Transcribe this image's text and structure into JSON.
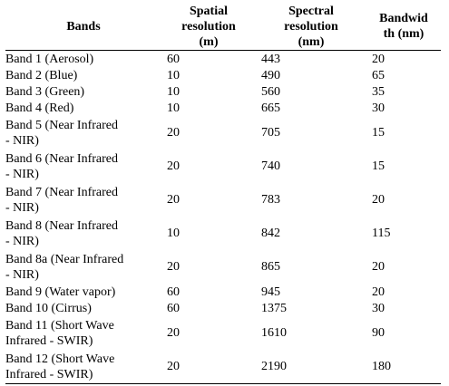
{
  "table": {
    "headers": {
      "bands": "Bands",
      "spatial": "Spatial resolution (m)",
      "spectral": "Spectral resolution (nm)",
      "bandwidth": "Bandwidth (nm)"
    },
    "header_lines": {
      "bands": [
        "Bands"
      ],
      "spatial": [
        "Spatial",
        "resolution",
        "(m)"
      ],
      "spectral": [
        "Spectral",
        "resolution",
        "(nm)"
      ],
      "bandwidth": [
        "Bandwid",
        "th (nm)"
      ]
    },
    "rows": [
      {
        "band": "Band 1 (Aerosol)",
        "spatial": "60",
        "spectral": "443",
        "bandwidth": "20"
      },
      {
        "band": "Band 2 (Blue)",
        "spatial": "10",
        "spectral": "490",
        "bandwidth": "65"
      },
      {
        "band": "Band 3 (Green)",
        "spatial": "10",
        "spectral": "560",
        "bandwidth": "35"
      },
      {
        "band": "Band 4 (Red)",
        "spatial": "10",
        "spectral": "665",
        "bandwidth": "30"
      },
      {
        "band": "Band 5 (Near Infrared - NIR)",
        "spatial": "20",
        "spectral": "705",
        "bandwidth": "15"
      },
      {
        "band": "Band 6 (Near Infrared - NIR)",
        "spatial": "20",
        "spectral": "740",
        "bandwidth": "15"
      },
      {
        "band": "Band 7 (Near Infrared - NIR)",
        "spatial": "20",
        "spectral": "783",
        "bandwidth": "20"
      },
      {
        "band": "Band 8 (Near Infrared - NIR)",
        "spatial": "10",
        "spectral": "842",
        "bandwidth": "115"
      },
      {
        "band": "Band 8a (Near Infrared - NIR)",
        "spatial": "20",
        "spectral": "865",
        "bandwidth": "20"
      },
      {
        "band": "Band 9 (Water vapor)",
        "spatial": "60",
        "spectral": "945",
        "bandwidth": "20"
      },
      {
        "band": "Band 10 (Cirrus)",
        "spatial": "60",
        "spectral": "1375",
        "bandwidth": "30"
      },
      {
        "band": "Band 11 (Short Wave Infrared - SWIR)",
        "spatial": "20",
        "spectral": "1610",
        "bandwidth": "90"
      },
      {
        "band": "Band 12 (Short Wave Infrared - SWIR)",
        "spatial": "20",
        "spectral": "2190",
        "bandwidth": "180"
      }
    ],
    "band_lines": [
      [
        "Band 1 (Aerosol)"
      ],
      [
        "Band 2 (Blue)"
      ],
      [
        "Band 3 (Green)"
      ],
      [
        "Band 4 (Red)"
      ],
      [
        "Band 5 (Near Infrared",
        "- NIR)"
      ],
      [
        "Band 6 (Near Infrared",
        "- NIR)"
      ],
      [
        "Band 7 (Near Infrared",
        "- NIR)"
      ],
      [
        "Band 8 (Near Infrared",
        "- NIR)"
      ],
      [
        "Band 8a (Near Infrared",
        "- NIR)"
      ],
      [
        "Band 9 (Water vapor)"
      ],
      [
        "Band 10 (Cirrus)"
      ],
      [
        "Band 11 (Short Wave",
        "Infrared - SWIR)"
      ],
      [
        "Band 12 (Short Wave",
        "Infrared - SWIR)"
      ]
    ]
  }
}
